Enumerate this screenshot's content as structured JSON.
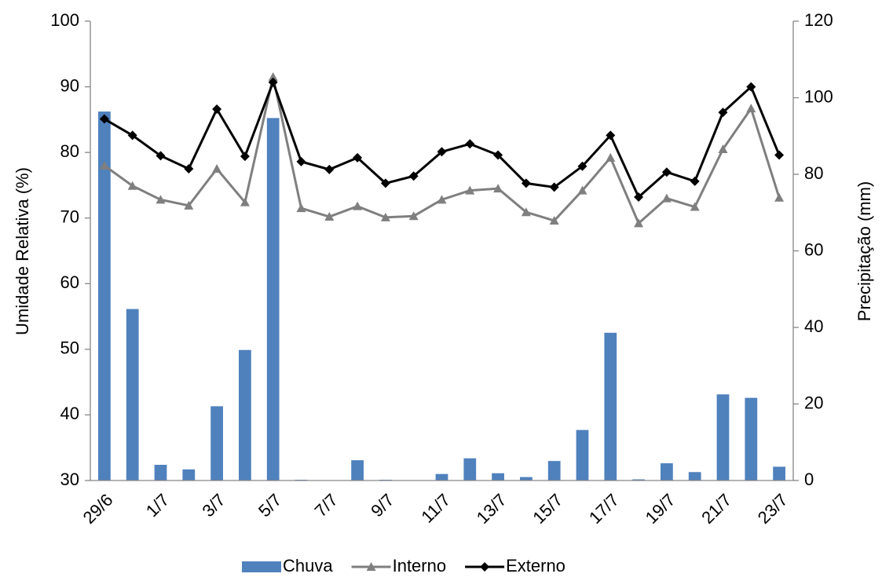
{
  "chart_data": {
    "type": "bar-line",
    "y_label": "Umidade Relativa (%)",
    "y2_label": "Precipitação (mm)",
    "categories": [
      "29/6",
      null,
      "1/7",
      null,
      "3/7",
      null,
      "5/7",
      null,
      "7/7",
      null,
      "9/7",
      null,
      "11/7",
      null,
      "13/7",
      null,
      "15/7",
      null,
      "17/7",
      null,
      "19/7",
      null,
      "21/7",
      null,
      "23/7"
    ],
    "series": [
      {
        "name": "Chuva",
        "type": "bar",
        "axis": "y2",
        "color": "#4f81bd",
        "values": [
          96.4,
          44.8,
          4.1,
          2.9,
          19.4,
          34.1,
          94.7,
          0.2,
          0,
          5.3,
          0.2,
          0,
          1.7,
          5.8,
          1.9,
          0.9,
          5.1,
          13.2,
          38.6,
          0.3,
          4.5,
          2.2,
          22.5,
          21.6,
          3.6
        ]
      },
      {
        "name": "Interno",
        "type": "line",
        "marker": "triangle",
        "color": "#7f7f7f",
        "values": [
          78.0,
          74.9,
          72.8,
          71.9,
          77.5,
          72.4,
          91.5,
          71.5,
          70.2,
          71.8,
          70.1,
          70.3,
          72.8,
          74.2,
          74.5,
          70.9,
          69.6,
          74.2,
          79.2,
          69.2,
          73.0,
          71.7,
          80.5,
          86.7,
          73.1
        ]
      },
      {
        "name": "Externo",
        "type": "line",
        "marker": "diamond",
        "color": "#000000",
        "values": [
          85.1,
          82.6,
          79.5,
          77.5,
          86.6,
          79.4,
          90.7,
          78.6,
          77.4,
          79.2,
          75.3,
          76.4,
          80.1,
          81.3,
          79.6,
          75.3,
          74.7,
          77.9,
          82.6,
          73.2,
          77.0,
          75.6,
          86.1,
          90.0,
          79.6
        ]
      }
    ],
    "ylim": [
      30,
      100
    ],
    "yticks": [
      30,
      40,
      50,
      60,
      70,
      80,
      90,
      100
    ],
    "y2lim": [
      0,
      120
    ],
    "y2ticks": [
      0,
      20,
      40,
      60,
      80,
      100,
      120
    ],
    "grid": false,
    "legend": "bottom"
  }
}
